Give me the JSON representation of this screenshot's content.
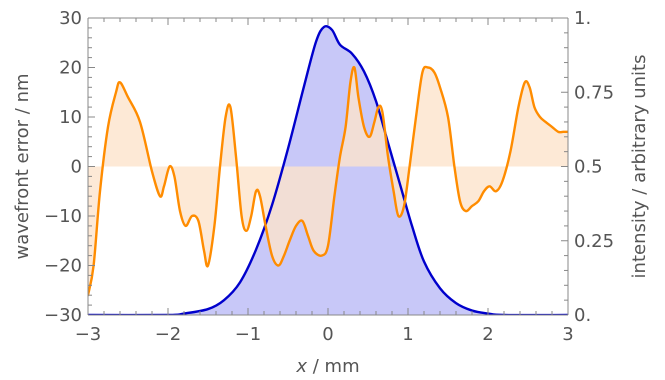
{
  "chart_data": {
    "type": "line",
    "xlabel_var": "x",
    "xlabel_unit": " / mm",
    "ylabel": "wavefront error / nm",
    "y2label": "intensity / arbitrary units",
    "xlim": [
      -3,
      3
    ],
    "ylim": [
      -30,
      30
    ],
    "y2lim": [
      0,
      1
    ],
    "x_ticks": [
      -3,
      -2,
      -1,
      0,
      1,
      2,
      3
    ],
    "x_tick_labels": [
      "−3",
      "−2",
      "−1",
      "0",
      "1",
      "2",
      "3"
    ],
    "y_ticks": [
      -30,
      -20,
      -10,
      0,
      10,
      20,
      30
    ],
    "y_tick_labels": [
      "−30",
      "−20",
      "−10",
      "0",
      "10",
      "20",
      "30"
    ],
    "y2_ticks": [
      0,
      0.25,
      0.5,
      0.75,
      1
    ],
    "y2_tick_labels": [
      "0.",
      "0.25",
      "0.5",
      "0.75",
      "1."
    ],
    "grid": false,
    "series": [
      {
        "type": "area",
        "axis": "right",
        "color": "#0000cc",
        "fill": "#c8c8f8",
        "points": [
          [
            -3.0,
            0.0
          ],
          [
            -2.0,
            0.0
          ],
          [
            -1.8,
            0.005
          ],
          [
            -1.5,
            0.02
          ],
          [
            -1.3,
            0.05
          ],
          [
            -1.1,
            0.11
          ],
          [
            -0.9,
            0.22
          ],
          [
            -0.7,
            0.37
          ],
          [
            -0.5,
            0.56
          ],
          [
            -0.3,
            0.77
          ],
          [
            -0.15,
            0.92
          ],
          [
            -0.05,
            0.97
          ],
          [
            0.05,
            0.96
          ],
          [
            0.15,
            0.91
          ],
          [
            0.3,
            0.88
          ],
          [
            0.45,
            0.82
          ],
          [
            0.6,
            0.72
          ],
          [
            0.75,
            0.58
          ],
          [
            0.9,
            0.44
          ],
          [
            1.05,
            0.3
          ],
          [
            1.2,
            0.18
          ],
          [
            1.4,
            0.09
          ],
          [
            1.6,
            0.04
          ],
          [
            1.8,
            0.015
          ],
          [
            2.0,
            0.005
          ],
          [
            2.2,
            0.0
          ],
          [
            3.0,
            0.0
          ]
        ]
      },
      {
        "type": "line",
        "axis": "left",
        "color": "#ff8c00",
        "fill": "#fde4cc",
        "points": [
          [
            -3.0,
            -26
          ],
          [
            -2.93,
            -20
          ],
          [
            -2.85,
            -5
          ],
          [
            -2.75,
            8
          ],
          [
            -2.65,
            15
          ],
          [
            -2.6,
            17
          ],
          [
            -2.5,
            14
          ],
          [
            -2.35,
            9
          ],
          [
            -2.2,
            -1
          ],
          [
            -2.1,
            -6
          ],
          [
            -2.05,
            -4
          ],
          [
            -1.98,
            0
          ],
          [
            -1.92,
            -2
          ],
          [
            -1.85,
            -9
          ],
          [
            -1.78,
            -12
          ],
          [
            -1.7,
            -10
          ],
          [
            -1.62,
            -11
          ],
          [
            -1.55,
            -17
          ],
          [
            -1.5,
            -20
          ],
          [
            -1.42,
            -12
          ],
          [
            -1.35,
            0
          ],
          [
            -1.28,
            10
          ],
          [
            -1.22,
            12
          ],
          [
            -1.15,
            2
          ],
          [
            -1.08,
            -10
          ],
          [
            -1.02,
            -13
          ],
          [
            -0.96,
            -10
          ],
          [
            -0.9,
            -5
          ],
          [
            -0.85,
            -6
          ],
          [
            -0.78,
            -12
          ],
          [
            -0.7,
            -18
          ],
          [
            -0.62,
            -20
          ],
          [
            -0.55,
            -18
          ],
          [
            -0.48,
            -15
          ],
          [
            -0.4,
            -12
          ],
          [
            -0.32,
            -11
          ],
          [
            -0.25,
            -14
          ],
          [
            -0.18,
            -17
          ],
          [
            -0.08,
            -18
          ],
          [
            0.0,
            -16
          ],
          [
            0.08,
            -6
          ],
          [
            0.15,
            2
          ],
          [
            0.22,
            8
          ],
          [
            0.28,
            17
          ],
          [
            0.33,
            20
          ],
          [
            0.38,
            14
          ],
          [
            0.45,
            8
          ],
          [
            0.52,
            6
          ],
          [
            0.58,
            9
          ],
          [
            0.63,
            12
          ],
          [
            0.68,
            11
          ],
          [
            0.75,
            2
          ],
          [
            0.82,
            -5
          ],
          [
            0.88,
            -10
          ],
          [
            0.95,
            -8
          ],
          [
            1.02,
            0
          ],
          [
            1.1,
            10
          ],
          [
            1.18,
            19
          ],
          [
            1.25,
            20
          ],
          [
            1.33,
            19
          ],
          [
            1.4,
            16
          ],
          [
            1.5,
            10
          ],
          [
            1.58,
            0
          ],
          [
            1.65,
            -7
          ],
          [
            1.72,
            -9
          ],
          [
            1.8,
            -8
          ],
          [
            1.88,
            -7
          ],
          [
            1.95,
            -5
          ],
          [
            2.02,
            -4
          ],
          [
            2.1,
            -5
          ],
          [
            2.18,
            -3
          ],
          [
            2.28,
            3
          ],
          [
            2.38,
            12
          ],
          [
            2.46,
            17
          ],
          [
            2.52,
            16
          ],
          [
            2.58,
            12
          ],
          [
            2.65,
            10
          ],
          [
            2.72,
            9
          ],
          [
            2.8,
            8
          ],
          [
            2.88,
            7
          ],
          [
            2.94,
            7
          ],
          [
            3.0,
            7
          ]
        ]
      }
    ]
  }
}
